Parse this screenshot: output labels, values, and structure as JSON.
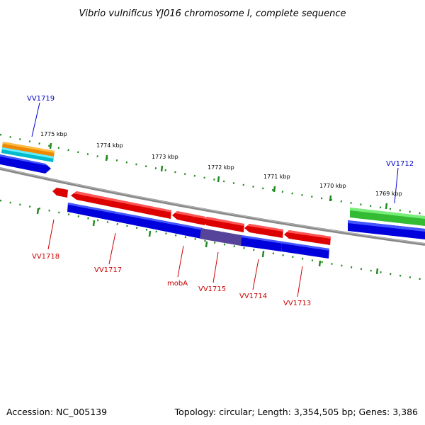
{
  "title": "Vibrio vulnificus YJ016 chromosome I, complete sequence",
  "footer": {
    "accession": "Accession: NC_005139",
    "summary": "Topology: circular; Length: 3,354,505 bp; Genes: 3,386"
  },
  "colors": {
    "forward_gene": "#0000dd",
    "reverse_gene": "#dd0000",
    "tick": "#228822",
    "backbone": "#888888"
  },
  "ticks": [
    {
      "label": "1775 kbp"
    },
    {
      "label": "1774 kbp"
    },
    {
      "label": "1773 kbp"
    },
    {
      "label": "1772 kbp"
    },
    {
      "label": "1771 kbp"
    },
    {
      "label": "1770 kbp"
    },
    {
      "label": "1769 kbp"
    }
  ],
  "gene_labels": [
    {
      "name": "VV1719",
      "strand": "forward"
    },
    {
      "name": "VV1712",
      "strand": "forward"
    },
    {
      "name": "VV1718",
      "strand": "reverse"
    },
    {
      "name": "VV1717",
      "strand": "reverse"
    },
    {
      "name": "mobA",
      "strand": "reverse"
    },
    {
      "name": "VV1715",
      "strand": "reverse"
    },
    {
      "name": "VV1714",
      "strand": "reverse"
    },
    {
      "name": "VV1713",
      "strand": "reverse"
    }
  ]
}
